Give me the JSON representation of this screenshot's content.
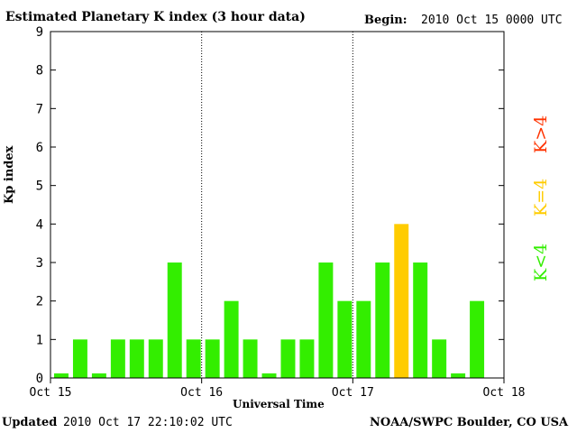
{
  "header": {
    "title": "Estimated Planetary K index (3 hour data)",
    "begin_label": "Begin:",
    "begin_value": "2010 Oct 15 0000 UTC"
  },
  "footer": {
    "updated_label": "Updated",
    "updated_value": "2010 Oct 17 22:10:02 UTC",
    "credit": "NOAA/SWPC Boulder, CO USA"
  },
  "legend": {
    "low": "K<4",
    "equal": "K=4",
    "high": "K>4"
  },
  "colors": {
    "low": "#33ee00",
    "equal": "#ffcc00",
    "high": "#ff3300",
    "axis": "#000000"
  },
  "chart_data": {
    "type": "bar",
    "title": "Estimated Planetary K index (3 hour data)",
    "xlabel": "Universal Time",
    "ylabel": "Kp index",
    "ylim": [
      0,
      9
    ],
    "yticks": [
      "0",
      "1",
      "2",
      "3",
      "4",
      "5",
      "6",
      "7",
      "8",
      "9"
    ],
    "xticks": [
      "Oct 15",
      "Oct 16",
      "Oct 17",
      "Oct 18"
    ],
    "bars_per_day": 8,
    "values": [
      0,
      1,
      0,
      1,
      1,
      1,
      3,
      1,
      1,
      2,
      1,
      0,
      1,
      1,
      3,
      2,
      2,
      3,
      4,
      3,
      1,
      0,
      2
    ],
    "grid": "dotted vertical lines at day boundaries"
  }
}
